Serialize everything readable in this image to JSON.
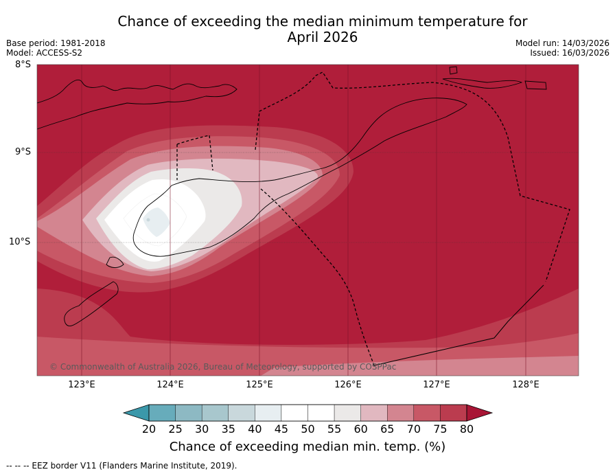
{
  "title_line1": "Chance of exceeding the median minimum temperature for",
  "title_line2": "April 2026",
  "meta_left": {
    "base_period": "Base period: 1981-2018",
    "model": "Model: ACCESS-S2"
  },
  "meta_right": {
    "model_run": "Model run: 14/03/2026",
    "issued": "Issued: 16/03/2026"
  },
  "lat_labels": [
    "8°S",
    "9°S",
    "10°S"
  ],
  "lon_labels": [
    "123°E",
    "124°E",
    "125°E",
    "126°E",
    "127°E",
    "128°E"
  ],
  "copyright": "© Commonwealth of Australia 2026, Bureau of Meteorology, supported by COSPPac",
  "colorbar": {
    "ticks": [
      "20",
      "25",
      "30",
      "35",
      "40",
      "45",
      "50",
      "55",
      "60",
      "65",
      "70",
      "75",
      "80"
    ],
    "label": "Chance of exceeding median min. temp. (%)",
    "colors": [
      "#3b98aa",
      "#67acbb",
      "#8db9c3",
      "#a8c7cd",
      "#c9d8dc",
      "#e7eef1",
      "#ffffff",
      "#ffffff",
      "#ebe9e8",
      "#e1b8c0",
      "#d38590",
      "#c85866",
      "#bb3c4f",
      "#a81535"
    ]
  },
  "legend_footer": "--  --  -- EEZ border V11 (Flanders Marine Institute, 2019)."
}
